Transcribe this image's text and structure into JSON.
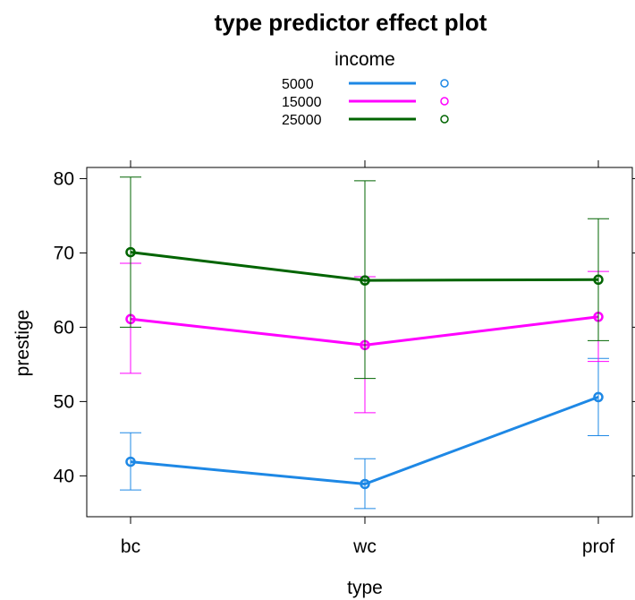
{
  "chart_data": {
    "type": "line",
    "title": "type predictor effect plot",
    "xlabel": "type",
    "ylabel": "prestige",
    "categories": [
      "bc",
      "wc",
      "prof"
    ],
    "ylim": [
      34.5,
      81.5
    ],
    "yticks": [
      40,
      50,
      60,
      70,
      80
    ],
    "grid": false,
    "legend": {
      "title": "income",
      "placement": "top-center"
    },
    "series": [
      {
        "name": "5000",
        "color": "#1e88e5",
        "values": [
          41.9,
          38.9,
          50.6
        ],
        "lower": [
          38.1,
          35.6,
          45.4
        ],
        "upper": [
          45.8,
          42.3,
          55.8
        ]
      },
      {
        "name": "15000",
        "color": "#ff00ff",
        "values": [
          61.1,
          57.6,
          61.4
        ],
        "lower": [
          53.8,
          48.5,
          55.4
        ],
        "upper": [
          68.6,
          66.8,
          67.5
        ]
      },
      {
        "name": "25000",
        "color": "#006400",
        "values": [
          70.1,
          66.3,
          66.4
        ],
        "lower": [
          60.0,
          53.1,
          58.2
        ],
        "upper": [
          80.2,
          79.7,
          74.6
        ]
      }
    ]
  }
}
